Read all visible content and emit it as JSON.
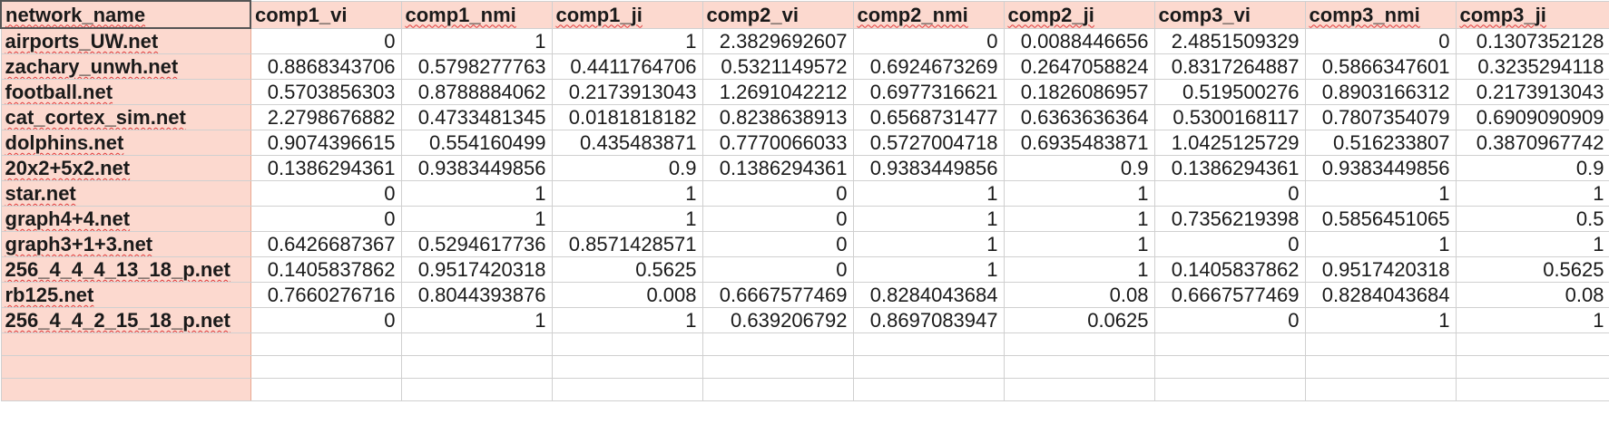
{
  "columns": [
    "network_name",
    "comp1_vi",
    "comp1_nmi",
    "comp1_ji",
    "comp2_vi",
    "comp2_nmi",
    "comp2_ji",
    "comp3_vi",
    "comp3_nmi",
    "comp3_ji"
  ],
  "rows": [
    [
      "airports_UW.net",
      "0",
      "1",
      "1",
      "2.3829692607",
      "0",
      "0.0088446656",
      "2.4851509329",
      "0",
      "0.1307352128"
    ],
    [
      "zachary_unwh.net",
      "0.8868343706",
      "0.5798277763",
      "0.4411764706",
      "0.5321149572",
      "0.6924673269",
      "0.2647058824",
      "0.8317264887",
      "0.5866347601",
      "0.3235294118"
    ],
    [
      "football.net",
      "0.5703856303",
      "0.8788884062",
      "0.2173913043",
      "1.2691042212",
      "0.6977316621",
      "0.1826086957",
      "0.519500276",
      "0.8903166312",
      "0.2173913043"
    ],
    [
      "cat_cortex_sim.net",
      "2.2798676882",
      "0.4733481345",
      "0.0181818182",
      "0.8238638913",
      "0.6568731477",
      "0.6363636364",
      "0.5300168117",
      "0.7807354079",
      "0.6909090909"
    ],
    [
      "dolphins.net",
      "0.9074396615",
      "0.554160499",
      "0.435483871",
      "0.7770066033",
      "0.5727004718",
      "0.6935483871",
      "1.0425125729",
      "0.516233807",
      "0.3870967742"
    ],
    [
      "20x2+5x2.net",
      "0.1386294361",
      "0.9383449856",
      "0.9",
      "0.1386294361",
      "0.9383449856",
      "0.9",
      "0.1386294361",
      "0.9383449856",
      "0.9"
    ],
    [
      "star.net",
      "0",
      "1",
      "1",
      "0",
      "1",
      "1",
      "0",
      "1",
      "1"
    ],
    [
      "graph4+4.net",
      "0",
      "1",
      "1",
      "0",
      "1",
      "1",
      "0.7356219398",
      "0.5856451065",
      "0.5"
    ],
    [
      "graph3+1+3.net",
      "0.6426687367",
      "0.5294617736",
      "0.8571428571",
      "0",
      "1",
      "1",
      "0",
      "1",
      "1"
    ],
    [
      "256_4_4_4_13_18_p.net",
      "0.1405837862",
      "0.9517420318",
      "0.5625",
      "0",
      "1",
      "1",
      "0.1405837862",
      "0.9517420318",
      "0.5625"
    ],
    [
      "rb125.net",
      "0.7660276716",
      "0.8044393876",
      "0.008",
      "0.6667577469",
      "0.8284043684",
      "0.08",
      "0.6667577469",
      "0.8284043684",
      "0.08"
    ],
    [
      "256_4_4_2_15_18_p.net",
      "0",
      "1",
      "1",
      "0.639206792",
      "0.8697083947",
      "0.0625",
      "0",
      "1",
      "1"
    ]
  ],
  "colors": {
    "header_fill": "#fcd9cf",
    "grid_line": "#d0d0d0",
    "spellcheck_underline": "#e03b3b"
  }
}
